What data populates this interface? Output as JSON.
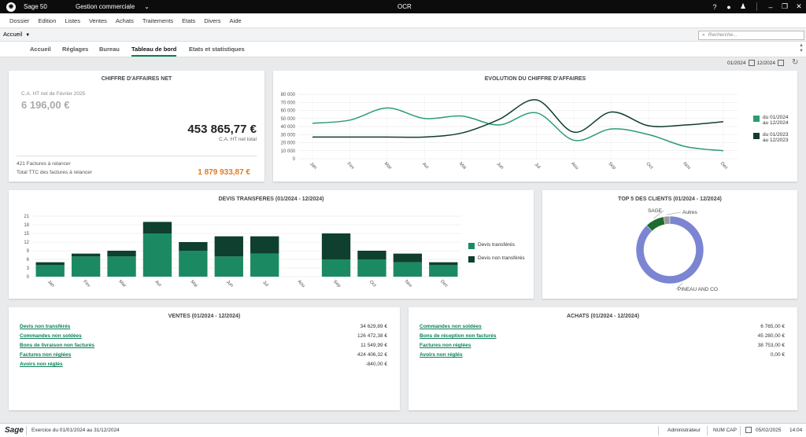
{
  "titlebar": {
    "app_name": "Sage 50",
    "module": "Gestion commerciale",
    "center_title": "OCR",
    "icons": [
      "help-icon",
      "bulb-icon",
      "user-icon",
      "minimize-icon",
      "restore-icon",
      "close-icon"
    ]
  },
  "menu": [
    "Dossier",
    "Edition",
    "Listes",
    "Ventes",
    "Achats",
    "Traitements",
    "Etats",
    "Divers",
    "Aide"
  ],
  "nav": {
    "selector": "Accueil",
    "search_placeholder": "Recherche..."
  },
  "tabs": [
    "Accueil",
    "Réglages",
    "Bureau",
    "Tableau de bord",
    "Etats et statistiques"
  ],
  "active_tab": "Tableau de bord",
  "date_range": {
    "from": "01/2024",
    "to": "12/2024"
  },
  "ca_card": {
    "title": "CHIFFRE D'AFFAIRES NET",
    "month_label": "C.A. HT net de Février 2025",
    "month_value": "6 196,00 €",
    "total_value": "453 865,77 €",
    "total_label": "C.A. HT net total",
    "relance_count": "421 Factures à relancer",
    "relance_label": "Total TTC des factures à relancer",
    "relance_value": "1 879 933,87 €"
  },
  "evolution_card": {
    "title": "EVOLUTION DU CHIFFRE D'AFFAIRES",
    "chart_data": {
      "type": "line",
      "categories": [
        "Jan",
        "Fev",
        "Mar",
        "Avr",
        "Mai",
        "Jun",
        "Jul",
        "Aou",
        "Sep",
        "Oct",
        "Nov",
        "Dec"
      ],
      "ylim": [
        0,
        80000
      ],
      "yticks": [
        "0",
        "10 000",
        "20 000",
        "30 000",
        "40 000",
        "50 000",
        "60 000",
        "70 000",
        "80 000"
      ],
      "series": [
        {
          "name": "du 01/2024 au 12/2024",
          "color": "#2a9d6f",
          "values": [
            44000,
            48000,
            63000,
            50000,
            53000,
            42000,
            57000,
            23000,
            37000,
            30000,
            15000,
            10000
          ]
        },
        {
          "name": "du 01/2023 au 12/2023",
          "color": "#0f3d2e",
          "values": [
            27000,
            27000,
            27000,
            27000,
            32000,
            49000,
            73000,
            33000,
            58000,
            41000,
            42000,
            46000
          ]
        }
      ],
      "legend": [
        "du 01/2024",
        "au 12/2024",
        "du 01/2023",
        "au 12/2023"
      ]
    }
  },
  "devis_card": {
    "title": "DEVIS TRANSFERES (01/2024 - 12/2024)",
    "chart_data": {
      "type": "bar",
      "stacked": true,
      "categories": [
        "Jan",
        "Fev",
        "Mar",
        "Avr",
        "Mai",
        "Jun",
        "Jul",
        "Aou",
        "Sep",
        "Oct",
        "Nov",
        "Dec"
      ],
      "ylim": [
        0,
        21
      ],
      "yticks": [
        "0",
        "3",
        "6",
        "9",
        "12",
        "15",
        "18",
        "21"
      ],
      "series": [
        {
          "name": "Devis transférés",
          "color": "#1b8a62",
          "values": [
            4,
            7,
            7,
            15,
            9,
            7,
            8,
            0,
            6,
            6,
            5,
            4
          ]
        },
        {
          "name": "Devis non transférés",
          "color": "#0e3f2f",
          "values": [
            1,
            1,
            2,
            4,
            3,
            7,
            6,
            0,
            9,
            3,
            3,
            1
          ]
        }
      ]
    }
  },
  "top5_card": {
    "title": "TOP 5 DES CLIENTS (01/2024 - 12/2024)",
    "chart_data": {
      "type": "pie",
      "donut": true,
      "labels": [
        "PINEAU AND CO",
        "SAGE",
        "Autres"
      ],
      "values": [
        88,
        9,
        3
      ],
      "colors": [
        "#7b85d1",
        "#1e6b2e",
        "#9a9a9a"
      ]
    }
  },
  "ventes_card": {
    "title": "VENTES (01/2024 - 12/2024)",
    "rows": [
      {
        "label": "Devis non transférés",
        "value": "34 629,89 €"
      },
      {
        "label": "Commandes non soldées",
        "value": "126 472,38 €"
      },
      {
        "label": "Bons de livraison non facturés",
        "value": "11 549,99 €"
      },
      {
        "label": "Factures non réglées",
        "value": "424 406,32 €"
      },
      {
        "label": "Avoirs non réglés",
        "value": "-840,00 €"
      }
    ]
  },
  "achats_card": {
    "title": "ACHATS (01/2024 - 12/2024)",
    "rows": [
      {
        "label": "Commandes non soldées",
        "value": "6 765,00 €"
      },
      {
        "label": "Bons de réception non facturés",
        "value": "45 280,00 €"
      },
      {
        "label": "Factures non réglées",
        "value": "38 753,00 €"
      },
      {
        "label": "Avoirs non réglés",
        "value": "0,00 €"
      }
    ]
  },
  "statusbar": {
    "logo": "Sage",
    "exercise": "Exercice du 01/01/2024 au 31/12/2024",
    "user": "Administrateur",
    "numcap": "NUM CAP",
    "date": "05/02/2025",
    "time": "14:04"
  }
}
